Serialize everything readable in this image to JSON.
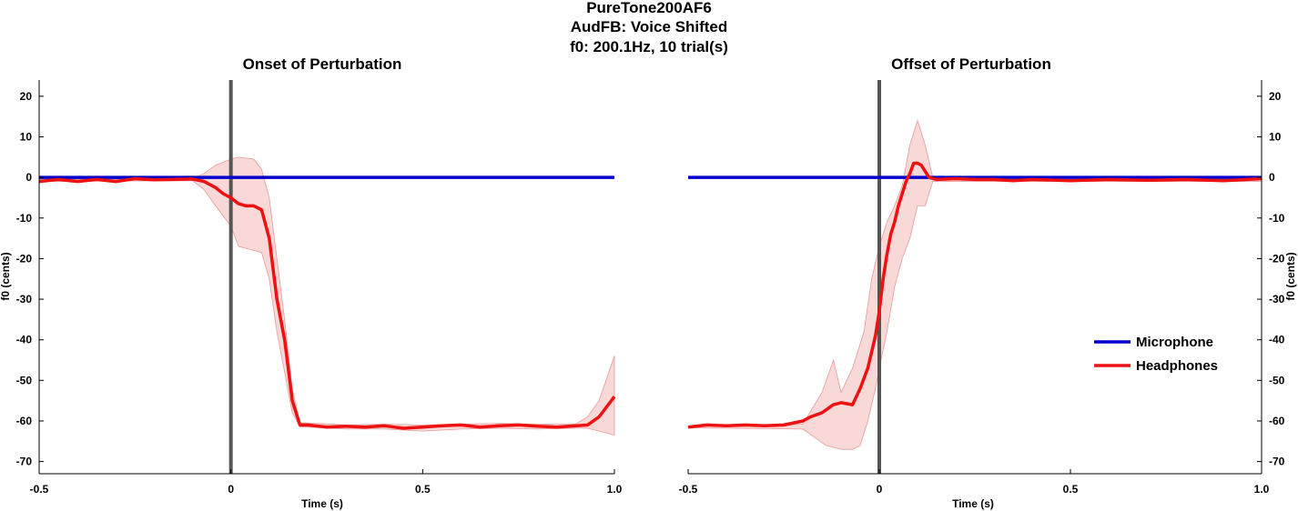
{
  "figure": {
    "title_lines": [
      "PureTone200AF6",
      "AudFB: Voice Shifted",
      "f0: 200.1Hz, 10 trial(s)"
    ]
  },
  "colors": {
    "microphone": "#0000cc",
    "headphones": "#ee1111",
    "band": "#f4b8b8",
    "marker": "#555555"
  },
  "legend": {
    "placement": "right, mid-lower of right panel",
    "items": [
      {
        "label": "Microphone",
        "color": "#0000cc"
      },
      {
        "label": "Headphones",
        "color": "#ee1111"
      }
    ]
  },
  "chart_data": [
    {
      "type": "line",
      "title": "Onset of Perturbation",
      "xlabel": "Time (s)",
      "ylabel": "f0 (cents)",
      "xlim": [
        -0.5,
        1.0
      ],
      "ylim": [
        -73,
        24
      ],
      "xticks": [
        -0.5,
        0,
        0.5,
        1.0
      ],
      "xtick_labels": [
        "-0.5",
        "0",
        "0.5",
        "1.0"
      ],
      "yticks": [
        20,
        10,
        0,
        -10,
        -20,
        -30,
        -40,
        -50,
        -60,
        -70
      ],
      "ytick_labels": [
        "20",
        "10",
        "0",
        "-10",
        "-20",
        "-30",
        "-40",
        "-50",
        "-60",
        "-70"
      ],
      "y_axis_side": "left",
      "event_marker_x": 0,
      "series": [
        {
          "name": "Microphone",
          "x": [
            -0.5,
            1.0
          ],
          "y": [
            0,
            0
          ]
        },
        {
          "name": "Headphones",
          "x": [
            -0.5,
            -0.45,
            -0.4,
            -0.35,
            -0.3,
            -0.25,
            -0.2,
            -0.15,
            -0.1,
            -0.07,
            -0.04,
            -0.02,
            0.0,
            0.02,
            0.04,
            0.06,
            0.08,
            0.1,
            0.12,
            0.14,
            0.16,
            0.18,
            0.2,
            0.25,
            0.3,
            0.35,
            0.4,
            0.45,
            0.5,
            0.55,
            0.6,
            0.65,
            0.7,
            0.75,
            0.8,
            0.85,
            0.9,
            0.93,
            0.96,
            1.0
          ],
          "y": [
            -1,
            -0.5,
            -1,
            -0.5,
            -1,
            -0.3,
            -0.6,
            -0.5,
            -0.4,
            -1,
            -2.5,
            -4,
            -5,
            -6.5,
            -7,
            -7,
            -8,
            -15,
            -30,
            -40,
            -55,
            -61,
            -61,
            -61.5,
            -61.3,
            -61.5,
            -61.2,
            -61.8,
            -61.5,
            -61.2,
            -61,
            -61.5,
            -61.2,
            -61,
            -61.3,
            -61.5,
            -61.2,
            -61,
            -59,
            -54
          ]
        },
        {
          "name": "Headphones band upper",
          "x": [
            -0.5,
            -0.1,
            -0.07,
            -0.04,
            0.0,
            0.02,
            0.06,
            0.08,
            0.1,
            0.12,
            0.14,
            0.16,
            0.18,
            0.2,
            0.3,
            0.4,
            0.5,
            0.6,
            0.7,
            0.8,
            0.9,
            0.93,
            0.96,
            1.0
          ],
          "y": [
            -0.5,
            -0.3,
            1,
            3,
            4.5,
            5,
            4.5,
            2,
            -5,
            -20,
            -35,
            -52,
            -60.5,
            -60.5,
            -61,
            -60.8,
            -61,
            -60.8,
            -60.6,
            -60.8,
            -60.7,
            -59,
            -55,
            -44
          ]
        },
        {
          "name": "Headphones band lower",
          "x": [
            -0.5,
            -0.1,
            -0.07,
            -0.04,
            0.0,
            0.02,
            0.06,
            0.08,
            0.1,
            0.12,
            0.14,
            0.16,
            0.18,
            0.2,
            0.3,
            0.4,
            0.5,
            0.6,
            0.7,
            0.8,
            0.9,
            0.93,
            0.96,
            1.0
          ],
          "y": [
            -1,
            -0.8,
            -3,
            -7,
            -12,
            -17,
            -18,
            -18.5,
            -25,
            -38,
            -48,
            -58,
            -61.5,
            -61.5,
            -62,
            -62,
            -62.5,
            -62,
            -61.8,
            -62,
            -61.8,
            -61.8,
            -62.5,
            -63.5
          ]
        }
      ]
    },
    {
      "type": "line",
      "title": "Offset of Perturbation",
      "xlabel": "Time (s)",
      "ylabel": "f0 (cents)",
      "xlim": [
        -0.5,
        1.0
      ],
      "ylim": [
        -73,
        24
      ],
      "xticks": [
        -0.5,
        0,
        0.5,
        1.0
      ],
      "xtick_labels": [
        "-0.5",
        "0",
        "0.5",
        "1.0"
      ],
      "yticks": [
        20,
        10,
        0,
        -10,
        -20,
        -30,
        -40,
        -50,
        -60,
        -70
      ],
      "ytick_labels": [
        "20",
        "10",
        "0",
        "-10",
        "-20",
        "-30",
        "-40",
        "-50",
        "-60",
        "-70"
      ],
      "y_axis_side": "right",
      "event_marker_x": 0,
      "series": [
        {
          "name": "Microphone",
          "x": [
            -0.5,
            1.0
          ],
          "y": [
            0,
            0
          ]
        },
        {
          "name": "Headphones",
          "x": [
            -0.5,
            -0.45,
            -0.4,
            -0.35,
            -0.3,
            -0.25,
            -0.2,
            -0.18,
            -0.15,
            -0.12,
            -0.1,
            -0.07,
            -0.05,
            -0.03,
            -0.01,
            0.0,
            0.01,
            0.02,
            0.03,
            0.04,
            0.05,
            0.06,
            0.07,
            0.08,
            0.09,
            0.1,
            0.11,
            0.13,
            0.15,
            0.2,
            0.25,
            0.3,
            0.35,
            0.4,
            0.5,
            0.6,
            0.7,
            0.8,
            0.9,
            1.0
          ],
          "y": [
            -61.5,
            -61,
            -61.2,
            -61,
            -61.2,
            -61,
            -60,
            -59,
            -58,
            -56,
            -55.5,
            -56,
            -52,
            -47,
            -39,
            -33,
            -25,
            -19,
            -14,
            -11,
            -7,
            -4,
            -1,
            1,
            3.5,
            3.5,
            3,
            0,
            -0.5,
            -0.3,
            -0.5,
            -0.5,
            -0.8,
            -0.5,
            -0.8,
            -0.5,
            -0.7,
            -0.5,
            -0.8,
            -0.3
          ]
        },
        {
          "name": "Headphones band upper",
          "x": [
            -0.5,
            -0.2,
            -0.15,
            -0.12,
            -0.1,
            -0.07,
            -0.04,
            -0.02,
            0.0,
            0.02,
            0.04,
            0.06,
            0.08,
            0.1,
            0.12,
            0.14,
            0.2,
            0.4,
            0.6,
            0.8,
            1.0
          ],
          "y": [
            -61.3,
            -60.8,
            -53,
            -45,
            -53,
            -47,
            -38,
            -25,
            -17,
            -11,
            -7,
            -2,
            8,
            14,
            8,
            0,
            0,
            0,
            0,
            0,
            0
          ]
        },
        {
          "name": "Headphones band lower",
          "x": [
            -0.5,
            -0.2,
            -0.17,
            -0.14,
            -0.1,
            -0.07,
            -0.05,
            -0.03,
            -0.01,
            0.0,
            0.02,
            0.04,
            0.06,
            0.08,
            0.1,
            0.12,
            0.14,
            0.2,
            0.4,
            0.6,
            0.8,
            1.0
          ],
          "y": [
            -61.7,
            -62,
            -64,
            -66,
            -67,
            -67,
            -66,
            -60,
            -52,
            -47,
            -38,
            -27,
            -20,
            -15,
            -7,
            -7,
            -1,
            -1,
            -1,
            -1,
            -1,
            -1
          ]
        }
      ]
    }
  ]
}
